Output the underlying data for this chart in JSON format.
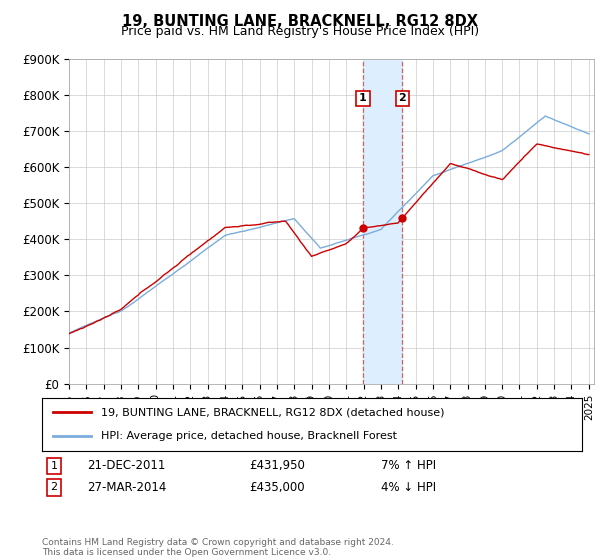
{
  "title": "19, BUNTING LANE, BRACKNELL, RG12 8DX",
  "subtitle": "Price paid vs. HM Land Registry's House Price Index (HPI)",
  "ylim": [
    0,
    900000
  ],
  "yticks": [
    0,
    100000,
    200000,
    300000,
    400000,
    500000,
    600000,
    700000,
    800000,
    900000
  ],
  "ytick_labels": [
    "£0",
    "£100K",
    "£200K",
    "£300K",
    "£400K",
    "£500K",
    "£600K",
    "£700K",
    "£800K",
    "£900K"
  ],
  "transaction1": {
    "date_num": 2011.97,
    "price": 431950,
    "label": "1",
    "text": "21-DEC-2011",
    "amount": "£431,950",
    "hpi_rel": "7% ↑ HPI"
  },
  "transaction2": {
    "date_num": 2014.24,
    "price": 435000,
    "label": "2",
    "text": "27-MAR-2014",
    "amount": "£435,000",
    "hpi_rel": "4% ↓ HPI"
  },
  "red_line_color": "#cc0000",
  "blue_line_color": "#7aaddc",
  "shade_color": "#ddeeff",
  "marker_color": "#cc0000",
  "footer_text": "Contains HM Land Registry data © Crown copyright and database right 2024.\nThis data is licensed under the Open Government Licence v3.0.",
  "legend_line1": "19, BUNTING LANE, BRACKNELL, RG12 8DX (detached house)",
  "legend_line2": "HPI: Average price, detached house, Bracknell Forest"
}
